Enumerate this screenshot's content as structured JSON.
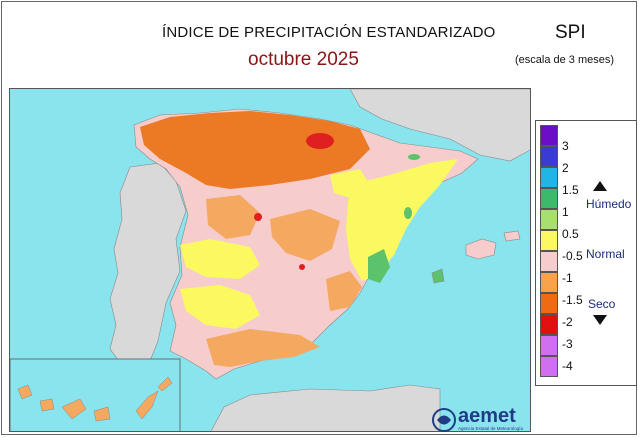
{
  "header": {
    "title": "ÍNDICE DE PRECIPITACIÓN ESTANDARIZADO",
    "subtitle": "octubre  2025",
    "index_name": "SPI",
    "index_scale": "(escala de 3 meses)"
  },
  "legend": {
    "ticks": [
      "3",
      "2",
      "1.5",
      "1",
      "0.5",
      "-0.5",
      "-1",
      "-1.5",
      "-2",
      "-3",
      "-4"
    ],
    "colors": [
      "#6a0fc7",
      "#3a3ad6",
      "#1fb6e4",
      "#3cb96a",
      "#a8e070",
      "#fafa60",
      "#f7cccc",
      "#f8a24a",
      "#f06a14",
      "#e01010",
      "#d070f0",
      "#ffffff"
    ],
    "label_wet": "Húmedo",
    "label_normal": "Normal",
    "label_dry": "Seco"
  },
  "map_colors": {
    "sea": "#8ae4ee",
    "land_other": "#d9d9d9",
    "normal": "#f7cccc",
    "dry": "#f4a860",
    "very_dry": "#ec7a24",
    "extreme_dry": "#e02020",
    "wet_slight": "#fafa60",
    "wet": "#5cc36c"
  },
  "logo": {
    "name": "aemet",
    "tagline": "Agencia Estatal de Meteorología"
  }
}
